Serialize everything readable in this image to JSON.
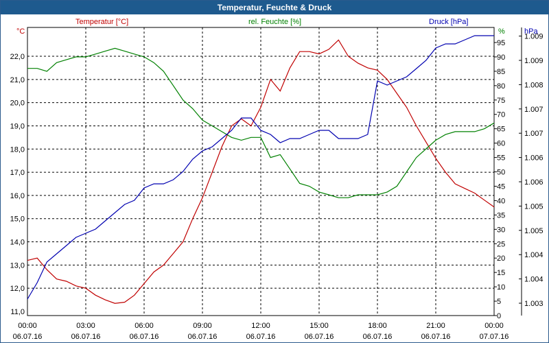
{
  "window": {
    "title": "Temperatur, Feuchte & Druck"
  },
  "colors": {
    "temperature": "#c00000",
    "humidity": "#008000",
    "pressure": "#0000b0",
    "titlebar": "#1e5a8e"
  },
  "chart_data": {
    "type": "line",
    "title": "Temperatur, Feuchte & Druck",
    "grid": true,
    "axes": {
      "left": {
        "label": "Temperatur [°C]",
        "unit": "°C",
        "range": [
          11.0,
          22.7
        ],
        "ticks": [
          "11,0",
          "12,0",
          "13,0",
          "14,0",
          "15,0",
          "16,0",
          "17,0",
          "18,0",
          "19,0",
          "20,0",
          "21,0",
          "22,0"
        ]
      },
      "right1": {
        "label": "rel. Feuchte [%]",
        "unit": "%",
        "range": [
          0,
          95
        ],
        "ticks": [
          "0",
          "5",
          "10",
          "15",
          "20",
          "25",
          "30",
          "35",
          "40",
          "45",
          "50",
          "55",
          "60",
          "65",
          "70",
          "75",
          "80",
          "85",
          "90",
          "95"
        ]
      },
      "right2": {
        "label": "Druck [hPa]",
        "unit": "hPa",
        "range": [
          1002.5,
          1009.5
        ],
        "ticks": [
          "1.003",
          "1.004",
          "1.004",
          "1.005",
          "1.005",
          "1.006",
          "1.006",
          "1.007",
          "1.007",
          "1.008",
          "1.009",
          "1.009"
        ]
      }
    },
    "x_ticks": [
      {
        "time": "00:00",
        "date": "06.07.16"
      },
      {
        "time": "03:00",
        "date": "06.07.16"
      },
      {
        "time": "06:00",
        "date": "06.07.16"
      },
      {
        "time": "09:00",
        "date": "06.07.16"
      },
      {
        "time": "12:00",
        "date": "06.07.16"
      },
      {
        "time": "15:00",
        "date": "06.07.16"
      },
      {
        "time": "18:00",
        "date": "06.07.16"
      },
      {
        "time": "21:00",
        "date": "06.07.16"
      },
      {
        "time": "00:00",
        "date": "07.07.16"
      }
    ],
    "series": [
      {
        "name": "Temperatur [°C]",
        "color": "#c00000",
        "x": [
          0,
          0.5,
          1,
          1.5,
          2,
          2.5,
          3,
          3.5,
          4,
          4.5,
          5,
          5.5,
          6,
          6.5,
          7,
          7.5,
          8,
          8.5,
          9,
          9.5,
          10,
          10.5,
          11,
          11.5,
          12,
          12.5,
          13,
          13.5,
          14,
          14.5,
          15,
          15.5,
          16,
          16.5,
          17,
          17.5,
          18,
          18.5,
          19,
          19.5,
          20,
          20.5,
          21,
          21.5,
          22,
          22.5,
          23,
          23.5,
          24
        ],
        "y": [
          13.2,
          13.3,
          12.8,
          12.4,
          12.3,
          12.1,
          12.0,
          11.7,
          11.5,
          11.35,
          11.4,
          11.7,
          12.2,
          12.7,
          13.0,
          13.5,
          14.0,
          15.0,
          15.9,
          17.0,
          18.1,
          19.0,
          19.3,
          19.0,
          19.8,
          21.0,
          20.5,
          21.5,
          22.2,
          22.2,
          22.1,
          22.3,
          22.7,
          22.0,
          21.7,
          21.5,
          21.4,
          21.0,
          20.4,
          19.8,
          19.0,
          18.3,
          17.6,
          17.0,
          16.5,
          16.3,
          16.1,
          15.8,
          15.5
        ]
      },
      {
        "name": "rel. Feuchte [%]",
        "color": "#008000",
        "x": [
          0,
          0.5,
          1,
          1.5,
          2,
          2.5,
          3,
          3.5,
          4,
          4.5,
          5,
          5.5,
          6,
          6.5,
          7,
          7.5,
          8,
          8.5,
          9,
          9.5,
          10,
          10.5,
          11,
          11.5,
          12,
          12.5,
          13,
          13.5,
          14,
          14.5,
          15,
          15.5,
          16,
          16.5,
          17,
          17.5,
          18,
          18.5,
          19,
          19.5,
          20,
          20.5,
          21,
          21.5,
          22,
          22.5,
          23,
          23.5,
          24
        ],
        "y": [
          86,
          86,
          85,
          88,
          89,
          90,
          90,
          91,
          92,
          93,
          92,
          91,
          90,
          88,
          85,
          80,
          75,
          72,
          68,
          66,
          64,
          62,
          61,
          62,
          62,
          55,
          56,
          51,
          46,
          45,
          43,
          42,
          41,
          41,
          42,
          42,
          42,
          43,
          45,
          50,
          55,
          58,
          61,
          63,
          64,
          64,
          64,
          65,
          67
        ]
      },
      {
        "name": "Druck [hPa]",
        "color": "#0000b0",
        "x": [
          0,
          0.5,
          1,
          1.5,
          2,
          2.5,
          3,
          3.5,
          4,
          4.5,
          5,
          5.5,
          6,
          6.5,
          7,
          7.5,
          8,
          8.5,
          9,
          9.5,
          10,
          10.5,
          11,
          11.5,
          12,
          12.5,
          13,
          13.5,
          14,
          14.5,
          15,
          15.5,
          16,
          16.5,
          17,
          17.5,
          18,
          18.5,
          19,
          19.5,
          20,
          20.5,
          21,
          21.5,
          22,
          22.5,
          23,
          23.5,
          24
        ],
        "y": [
          1002.9,
          1003.3,
          1003.8,
          1004.0,
          1004.2,
          1004.4,
          1004.5,
          1004.6,
          1004.8,
          1005.0,
          1005.2,
          1005.3,
          1005.6,
          1005.7,
          1005.7,
          1005.8,
          1006.0,
          1006.3,
          1006.5,
          1006.6,
          1006.8,
          1007.0,
          1007.3,
          1007.3,
          1007.0,
          1006.9,
          1006.7,
          1006.8,
          1006.8,
          1006.9,
          1007.0,
          1007.0,
          1006.8,
          1006.8,
          1006.8,
          1006.9,
          1008.2,
          1008.1,
          1008.2,
          1008.3,
          1008.5,
          1008.7,
          1009.0,
          1009.1,
          1009.1,
          1009.2,
          1009.3,
          1009.3,
          1009.3
        ]
      }
    ]
  }
}
